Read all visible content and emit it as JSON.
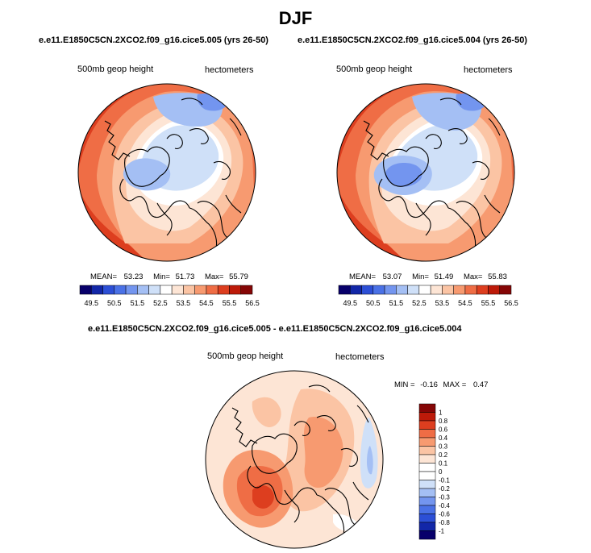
{
  "page_title": "DJF",
  "panels": [
    {
      "id": "panel1",
      "subtitle": "e.e11.E1850C5CN.2XCO2.f09_g16.cice5.005 (yrs 26-50)",
      "variable_label": "500mb geop height",
      "units_label": "hectometers",
      "stats": {
        "mean_label": "MEAN=",
        "mean": "53.23",
        "min_label": "Min=",
        "min": "51.73",
        "max_label": "Max=",
        "max": "55.79"
      },
      "colorbar": {
        "orientation": "horizontal",
        "colors": [
          "#08006b",
          "#1227a8",
          "#2c4fd6",
          "#4a71e6",
          "#7395ef",
          "#a4bff4",
          "#cfe0f8",
          "#ffffff",
          "#fde5d5",
          "#fbc4a4",
          "#f79a70",
          "#ef6d45",
          "#dd3e1f",
          "#bd1a09",
          "#850606"
        ],
        "labels": [
          "49.5",
          "50.5",
          "51.5",
          "52.5",
          "53.5",
          "54.5",
          "55.5",
          "56.5"
        ]
      }
    },
    {
      "id": "panel2",
      "subtitle": "e.e11.E1850C5CN.2XCO2.f09_g16.cice5.004 (yrs 26-50)",
      "variable_label": "500mb geop height",
      "units_label": "hectometers",
      "stats": {
        "mean_label": "MEAN=",
        "mean": "53.07",
        "min_label": "Min=",
        "min": "51.49",
        "max_label": "Max=",
        "max": "55.83"
      },
      "colorbar": {
        "orientation": "horizontal",
        "colors": [
          "#08006b",
          "#1227a8",
          "#2c4fd6",
          "#4a71e6",
          "#7395ef",
          "#a4bff4",
          "#cfe0f8",
          "#ffffff",
          "#fde5d5",
          "#fbc4a4",
          "#f79a70",
          "#ef6d45",
          "#dd3e1f",
          "#bd1a09",
          "#850606"
        ],
        "labels": [
          "49.5",
          "50.5",
          "51.5",
          "52.5",
          "53.5",
          "54.5",
          "55.5",
          "56.5"
        ]
      }
    },
    {
      "id": "panel3",
      "subtitle": "e.e11.E1850C5CN.2XCO2.f09_g16.cice5.005 - e.e11.E1850C5CN.2XCO2.f09_g16.cice5.004",
      "variable_label": "500mb geop height",
      "units_label": "hectometers",
      "stats": {
        "min_label": "MIN =",
        "min": "-0.16",
        "max_label": "MAX =",
        "max": "0.47"
      },
      "colorbar": {
        "orientation": "vertical",
        "colors": [
          "#850606",
          "#bd1a09",
          "#dd3e1f",
          "#ef6d45",
          "#f79a70",
          "#fbc4a4",
          "#fde5d5",
          "#ffffff",
          "#ffffff",
          "#cfe0f8",
          "#a4bff4",
          "#7395ef",
          "#4a71e6",
          "#2c4fd6",
          "#1227a8",
          "#08006b"
        ],
        "labels": [
          "1",
          "0.8",
          "0.6",
          "0.4",
          "0.3",
          "0.2",
          "0.1",
          "0",
          "-0.1",
          "-0.2",
          "-0.3",
          "-0.4",
          "-0.6",
          "-0.8",
          "-1"
        ]
      }
    }
  ]
}
